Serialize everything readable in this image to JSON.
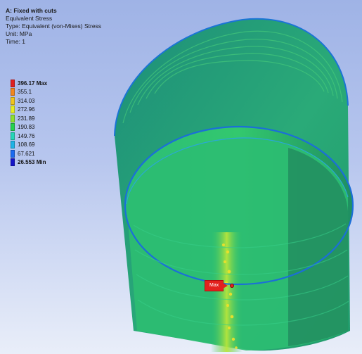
{
  "result_header": {
    "title": "A: Fixed with cuts",
    "lines": [
      "Equivalent Stress",
      "Type: Equivalent (von-Mises) Stress",
      "Unit: MPa",
      "Time: 1"
    ]
  },
  "legend": {
    "entries": [
      {
        "label": "396.17 Max",
        "color": "#e02020",
        "bold": true
      },
      {
        "label": "355.1",
        "color": "#f2861e",
        "bold": false
      },
      {
        "label": "314.03",
        "color": "#f0c51d",
        "bold": false
      },
      {
        "label": "272.96",
        "color": "#e6ec22",
        "bold": false
      },
      {
        "label": "231.89",
        "color": "#8ee02f",
        "bold": false
      },
      {
        "label": "190.83",
        "color": "#24d24e",
        "bold": false
      },
      {
        "label": "149.76",
        "color": "#24d6b8",
        "bold": false
      },
      {
        "label": "108.69",
        "color": "#1fb3e6",
        "bold": false
      },
      {
        "label": "67.621",
        "color": "#1c6bf0",
        "bold": false
      },
      {
        "label": "26.553 Min",
        "color": "#1414c8",
        "bold": true
      }
    ]
  },
  "probe": {
    "label": "Max",
    "color": "#e3211e"
  },
  "colors": {
    "background_top": "#9fb3e6",
    "background_bottom": "#e9eef9",
    "cylinder_outer": "#29a86e",
    "cylinder_inner": "#2bb97b",
    "cylinder_edge": "#1c6bf0"
  }
}
